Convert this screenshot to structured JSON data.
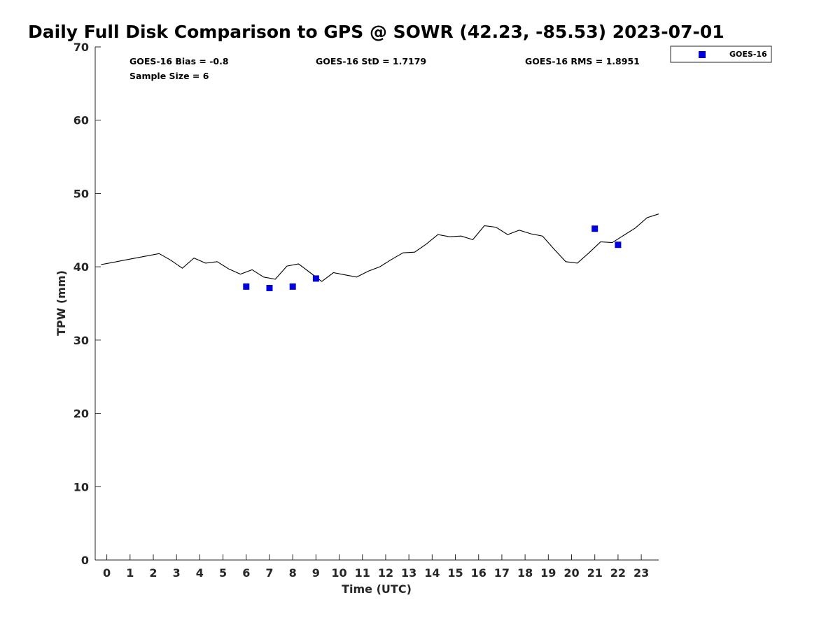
{
  "chart_data": {
    "type": "line",
    "title": "Daily Full Disk Comparison to GPS @ SOWR (42.23, -85.53) 2023-07-01",
    "xlabel": "Time (UTC)",
    "ylabel": "TPW (mm)",
    "xlim": [
      -0.5,
      23.75
    ],
    "ylim": [
      0,
      70
    ],
    "x_ticks": [
      0,
      1,
      2,
      3,
      4,
      5,
      6,
      7,
      8,
      9,
      10,
      11,
      12,
      13,
      14,
      15,
      16,
      17,
      18,
      19,
      20,
      21,
      22,
      23
    ],
    "x_tick_labels": [
      "0",
      "1",
      "2",
      "3",
      "4",
      "5",
      "6",
      "7",
      "8",
      "9",
      "10",
      "11",
      "12",
      "13",
      "14",
      "15",
      "16",
      "17",
      "18",
      "19",
      "20",
      "21",
      "22",
      "23"
    ],
    "y_ticks": [
      0,
      10,
      20,
      30,
      40,
      50,
      60,
      70
    ],
    "y_tick_labels": [
      "0",
      "10",
      "20",
      "30",
      "40",
      "50",
      "60",
      "70"
    ],
    "grid": false,
    "legend_position": "outside-top-right",
    "stats": {
      "bias": "GOES-16 Bias = -0.8",
      "std": "GOES-16 StD = 1.7179",
      "rms": "GOES-16 RMS = 1.8951",
      "sample": "Sample Size = 6"
    },
    "series": [
      {
        "kind": "line",
        "color": "#000000",
        "x": [
          -0.25,
          0.25,
          0.75,
          1.25,
          1.75,
          2.25,
          2.75,
          3.25,
          3.75,
          4.25,
          4.75,
          5.25,
          5.75,
          6.25,
          6.75,
          7.25,
          7.75,
          8.25,
          8.75,
          9.25,
          9.75,
          10.25,
          10.75,
          11.25,
          11.75,
          12.25,
          12.75,
          13.25,
          13.75,
          14.25,
          14.75,
          15.25,
          15.75,
          16.25,
          16.75,
          17.25,
          17.75,
          18.25,
          18.75,
          19.25,
          19.75,
          20.25,
          20.75,
          21.25,
          21.75,
          22.25,
          22.75,
          23.25,
          23.75
        ],
        "y": [
          40.3,
          40.6,
          40.9,
          41.2,
          41.5,
          41.8,
          40.9,
          39.8,
          41.2,
          40.5,
          40.7,
          39.7,
          39.0,
          39.6,
          38.6,
          38.3,
          40.1,
          40.4,
          39.2,
          38.0,
          39.2,
          38.9,
          38.6,
          39.4,
          40.0,
          41.0,
          41.9,
          42.0,
          43.1,
          44.4,
          44.1,
          44.2,
          43.7,
          45.6,
          45.4,
          44.4,
          45.0,
          44.5,
          44.2,
          42.4,
          40.7,
          40.5,
          41.9,
          43.4,
          43.3,
          44.3,
          45.3,
          46.7,
          47.2
        ]
      },
      {
        "kind": "scatter",
        "name": "GOES-16",
        "color": "#0000dd",
        "x": [
          6,
          7,
          8,
          9,
          21,
          22
        ],
        "y": [
          37.3,
          37.1,
          37.3,
          38.4,
          45.2,
          43.0
        ]
      }
    ]
  }
}
